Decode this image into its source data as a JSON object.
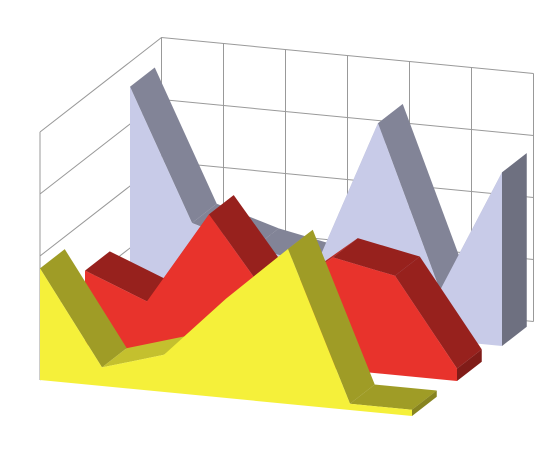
{
  "chart_data": {
    "type": "area3d",
    "categories": [
      null,
      null,
      null,
      null,
      null,
      null,
      null
    ],
    "series": [
      {
        "color": "#f5f03a",
        "values": [
          1.8,
          0.3,
          0.6,
          1.6,
          2.5,
          0.1,
          0.1
        ]
      },
      {
        "color": "#e8332c",
        "values": [
          1.2,
          0.8,
          2.3,
          1.0,
          1.8,
          1.6,
          0.2
        ]
      },
      {
        "color": "#c8cbe8",
        "values": [
          3.6,
          1.5,
          1.2,
          1.0,
          3.4,
          0.8,
          2.8
        ]
      }
    ],
    "ylim": [
      0,
      4
    ],
    "yticks": [
      0,
      1,
      2,
      3,
      4
    ],
    "grid": true
  }
}
